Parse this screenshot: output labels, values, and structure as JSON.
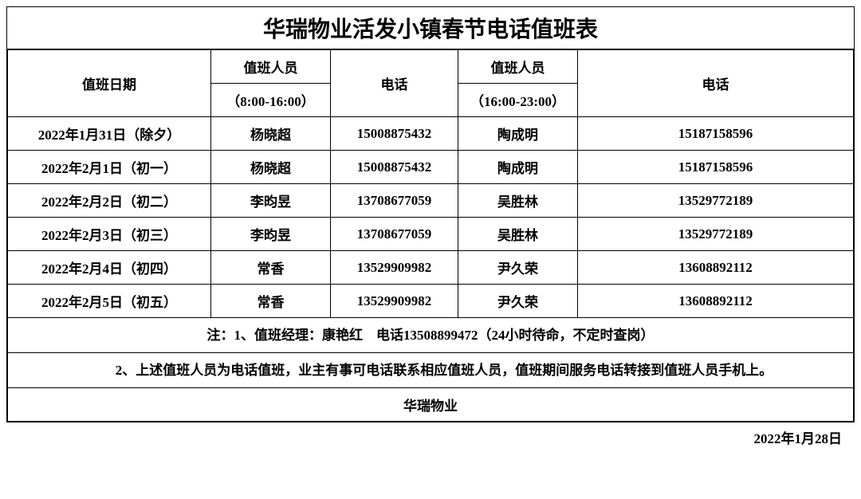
{
  "title": "华瑞物业活发小镇春节电话值班表",
  "headers": {
    "date": "值班日期",
    "staff1": "值班人员",
    "shift1": "（8:00-16:00）",
    "phone1": "电话",
    "staff2": "值班人员",
    "shift2": "（16:00-23:00）",
    "phone2": "电话"
  },
  "rows": [
    {
      "date": "2022年1月31日（除夕）",
      "staff1": "杨晓超",
      "phone1": "15008875432",
      "staff2": "陶成明",
      "phone2": "15187158596"
    },
    {
      "date": "2022年2月1日（初一）",
      "staff1": "杨晓超",
      "phone1": "15008875432",
      "staff2": "陶成明",
      "phone2": "15187158596"
    },
    {
      "date": "2022年2月2日（初二）",
      "staff1": "李昀昱",
      "phone1": "13708677059",
      "staff2": "吴胜林",
      "phone2": "13529772189"
    },
    {
      "date": "2022年2月3日（初三）",
      "staff1": "李昀昱",
      "phone1": "13708677059",
      "staff2": "吴胜林",
      "phone2": "13529772189"
    },
    {
      "date": "2022年2月4日（初四）",
      "staff1": "常香",
      "phone1": "13529909982",
      "staff2": "尹久荣",
      "phone2": "13608892112"
    },
    {
      "date": "2022年2月5日（初五）",
      "staff1": "常香",
      "phone1": "13529909982",
      "staff2": "尹久荣",
      "phone2": "13608892112"
    }
  ],
  "notes": {
    "n1": "注：1、值班经理：康艳红　电话13508899472（24小时待命，不定时查岗）",
    "n2": "　　2、上述值班人员为电话值班，业主有事可电话联系相应值班人员，值班期间服务电话转接到值班人员手机上。"
  },
  "signature": "华瑞物业",
  "issue_date": "2022年1月28日",
  "style": {
    "border_color": "#000000",
    "background": "#ffffff",
    "title_fontsize": 28,
    "cell_fontsize": 17,
    "font_family": "SimSun"
  }
}
